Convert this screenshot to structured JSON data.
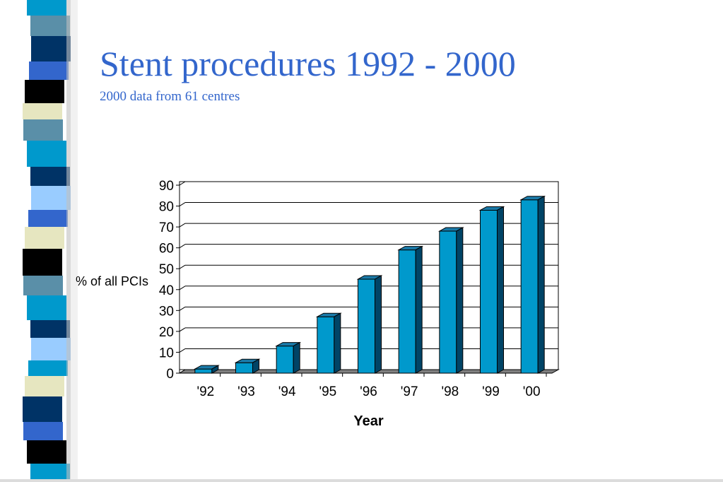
{
  "slide": {
    "title": "Stent procedures 1992 - 2000",
    "subtitle": "2000 data from 61 centres"
  },
  "colors": {
    "title": "#3366cc",
    "bar_front": "#0099cc",
    "bar_top": "#1a7aa8",
    "bar_side": "#004466",
    "floor": "#808080"
  },
  "chart_data": {
    "type": "bar",
    "categories": [
      "'92",
      "'93",
      "'94",
      "'95",
      "'96",
      "'97",
      "'98",
      "'99",
      "'00"
    ],
    "values": [
      2,
      5,
      13,
      27,
      45,
      59,
      68,
      78,
      83
    ],
    "xlabel": "Year",
    "ylabel": "% of all PCIs",
    "ylim": [
      0,
      90
    ],
    "yticks": [
      0,
      10,
      20,
      30,
      40,
      50,
      60,
      70,
      80,
      90
    ],
    "grid": true,
    "style": "3d-column"
  }
}
